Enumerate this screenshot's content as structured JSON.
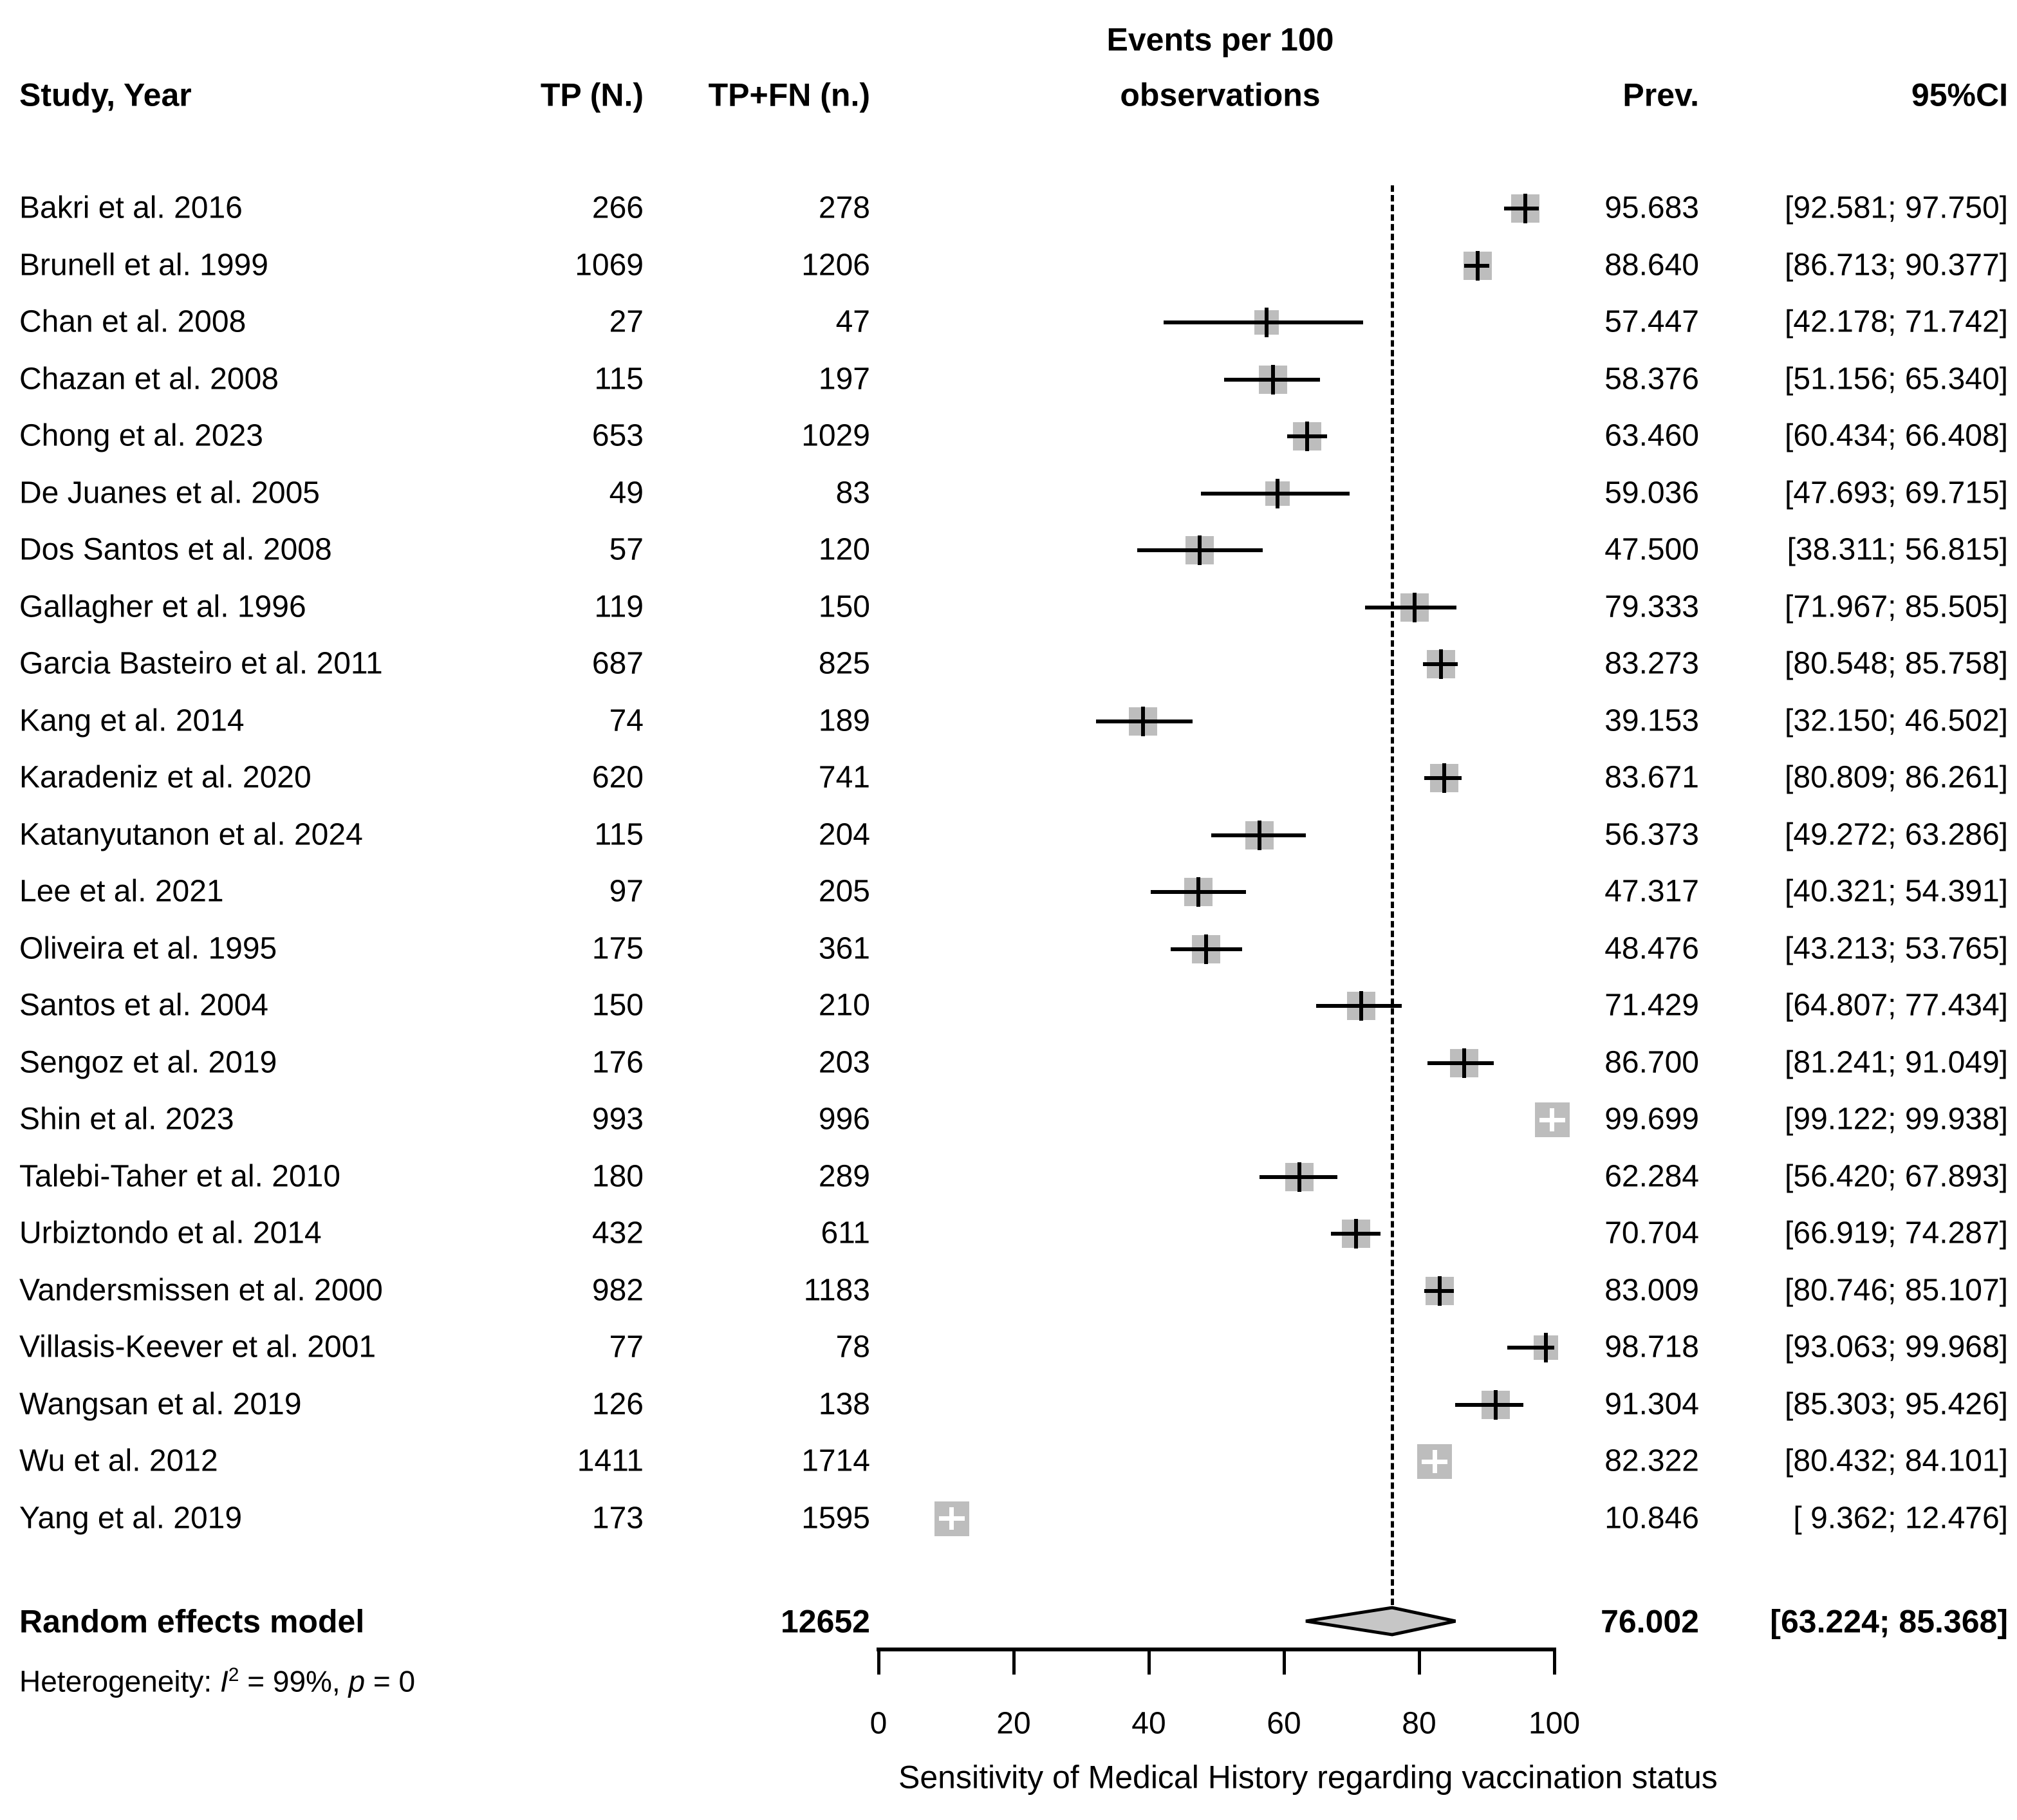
{
  "chart_data": {
    "type": "scatter",
    "subtype": "forest-plot-meta-analysis",
    "title": "Events per 100 observations",
    "title_line1": "Events per 100",
    "title_line2": "observations",
    "columns": {
      "study": "Study, Year",
      "tp": "TP (N.)",
      "tp_fn": "TP+FN (n.)",
      "prev": "Prev.",
      "ci": "95%CI"
    },
    "xlim": [
      0,
      100
    ],
    "xticks": [
      0,
      20,
      40,
      60,
      80,
      100
    ],
    "xlabel": "Sensitivity of Medical History regarding vaccination status",
    "reference_line_x": 76.002,
    "legend": "none",
    "grid": "off",
    "marker_color": "#bdbdbd",
    "diamond_color": "#c6c6c6",
    "line_color": "#000000",
    "studies": [
      {
        "name": "Bakri et al. 2016",
        "tp": "266",
        "tp_fn": "278",
        "n": 278,
        "prev": 95.683,
        "prev_text": "95.683",
        "lo": 92.581,
        "hi": 97.75,
        "ci_text": "[92.581; 97.750]",
        "white": false
      },
      {
        "name": "Brunell et al. 1999",
        "tp": "1069",
        "tp_fn": "1206",
        "n": 1206,
        "prev": 88.64,
        "prev_text": "88.640",
        "lo": 86.713,
        "hi": 90.377,
        "ci_text": "[86.713; 90.377]",
        "white": false
      },
      {
        "name": "Chan et al. 2008",
        "tp": "27",
        "tp_fn": "47",
        "n": 47,
        "prev": 57.447,
        "prev_text": "57.447",
        "lo": 42.178,
        "hi": 71.742,
        "ci_text": "[42.178; 71.742]",
        "white": false
      },
      {
        "name": "Chazan et al. 2008",
        "tp": "115",
        "tp_fn": "197",
        "n": 197,
        "prev": 58.376,
        "prev_text": "58.376",
        "lo": 51.156,
        "hi": 65.34,
        "ci_text": "[51.156; 65.340]",
        "white": false
      },
      {
        "name": "Chong et al. 2023",
        "tp": "653",
        "tp_fn": "1029",
        "n": 1029,
        "prev": 63.46,
        "prev_text": "63.460",
        "lo": 60.434,
        "hi": 66.408,
        "ci_text": "[60.434; 66.408]",
        "white": false
      },
      {
        "name": "De Juanes et al. 2005",
        "tp": "49",
        "tp_fn": "83",
        "n": 83,
        "prev": 59.036,
        "prev_text": "59.036",
        "lo": 47.693,
        "hi": 69.715,
        "ci_text": "[47.693; 69.715]",
        "white": false
      },
      {
        "name": "Dos Santos et al. 2008",
        "tp": "57",
        "tp_fn": "120",
        "n": 120,
        "prev": 47.5,
        "prev_text": "47.500",
        "lo": 38.311,
        "hi": 56.815,
        "ci_text": "[38.311; 56.815]",
        "white": false
      },
      {
        "name": "Gallagher et al. 1996",
        "tp": "119",
        "tp_fn": "150",
        "n": 150,
        "prev": 79.333,
        "prev_text": "79.333",
        "lo": 71.967,
        "hi": 85.505,
        "ci_text": "[71.967; 85.505]",
        "white": false
      },
      {
        "name": "Garcia Basteiro et al. 2011",
        "tp": "687",
        "tp_fn": "825",
        "n": 825,
        "prev": 83.273,
        "prev_text": "83.273",
        "lo": 80.548,
        "hi": 85.758,
        "ci_text": "[80.548; 85.758]",
        "white": false
      },
      {
        "name": "Kang et al. 2014",
        "tp": "74",
        "tp_fn": "189",
        "n": 189,
        "prev": 39.153,
        "prev_text": "39.153",
        "lo": 32.15,
        "hi": 46.502,
        "ci_text": "[32.150; 46.502]",
        "white": false
      },
      {
        "name": "Karadeniz et al. 2020",
        "tp": "620",
        "tp_fn": "741",
        "n": 741,
        "prev": 83.671,
        "prev_text": "83.671",
        "lo": 80.809,
        "hi": 86.261,
        "ci_text": "[80.809; 86.261]",
        "white": false
      },
      {
        "name": "Katanyutanon et al. 2024",
        "tp": "115",
        "tp_fn": "204",
        "n": 204,
        "prev": 56.373,
        "prev_text": "56.373",
        "lo": 49.272,
        "hi": 63.286,
        "ci_text": "[49.272; 63.286]",
        "white": false
      },
      {
        "name": "Lee et al. 2021",
        "tp": "97",
        "tp_fn": "205",
        "n": 205,
        "prev": 47.317,
        "prev_text": "47.317",
        "lo": 40.321,
        "hi": 54.391,
        "ci_text": "[40.321; 54.391]",
        "white": false
      },
      {
        "name": "Oliveira et al. 1995",
        "tp": "175",
        "tp_fn": "361",
        "n": 361,
        "prev": 48.476,
        "prev_text": "48.476",
        "lo": 43.213,
        "hi": 53.765,
        "ci_text": "[43.213; 53.765]",
        "white": false
      },
      {
        "name": "Santos et al. 2004",
        "tp": "150",
        "tp_fn": "210",
        "n": 210,
        "prev": 71.429,
        "prev_text": "71.429",
        "lo": 64.807,
        "hi": 77.434,
        "ci_text": "[64.807; 77.434]",
        "white": false
      },
      {
        "name": "Sengoz et al. 2019",
        "tp": "176",
        "tp_fn": "203",
        "n": 203,
        "prev": 86.7,
        "prev_text": "86.700",
        "lo": 81.241,
        "hi": 91.049,
        "ci_text": "[81.241; 91.049]",
        "white": false
      },
      {
        "name": "Shin et al. 2023",
        "tp": "993",
        "tp_fn": "996",
        "n": 996,
        "prev": 99.699,
        "prev_text": "99.699",
        "lo": 99.122,
        "hi": 99.938,
        "ci_text": "[99.122; 99.938]",
        "white": true
      },
      {
        "name": "Talebi-Taher et al. 2010",
        "tp": "180",
        "tp_fn": "289",
        "n": 289,
        "prev": 62.284,
        "prev_text": "62.284",
        "lo": 56.42,
        "hi": 67.893,
        "ci_text": "[56.420; 67.893]",
        "white": false
      },
      {
        "name": "Urbiztondo et al. 2014",
        "tp": "432",
        "tp_fn": "611",
        "n": 611,
        "prev": 70.704,
        "prev_text": "70.704",
        "lo": 66.919,
        "hi": 74.287,
        "ci_text": "[66.919; 74.287]",
        "white": false
      },
      {
        "name": "Vandersmissen et al. 2000",
        "tp": "982",
        "tp_fn": "1183",
        "n": 1183,
        "prev": 83.009,
        "prev_text": "83.009",
        "lo": 80.746,
        "hi": 85.107,
        "ci_text": "[80.746; 85.107]",
        "white": false
      },
      {
        "name": "Villasis-Keever et al. 2001",
        "tp": "77",
        "tp_fn": "78",
        "n": 78,
        "prev": 98.718,
        "prev_text": "98.718",
        "lo": 93.063,
        "hi": 99.968,
        "ci_text": "[93.063; 99.968]",
        "white": false
      },
      {
        "name": "Wangsan et al. 2019",
        "tp": "126",
        "tp_fn": "138",
        "n": 138,
        "prev": 91.304,
        "prev_text": "91.304",
        "lo": 85.303,
        "hi": 95.426,
        "ci_text": "[85.303; 95.426]",
        "white": false
      },
      {
        "name": "Wu et al. 2012",
        "tp": "1411",
        "tp_fn": "1714",
        "n": 1714,
        "prev": 82.322,
        "prev_text": "82.322",
        "lo": 80.432,
        "hi": 84.101,
        "ci_text": "[80.432; 84.101]",
        "white": true
      },
      {
        "name": "Yang et al. 2019",
        "tp": "173",
        "tp_fn": "1595",
        "n": 1595,
        "prev": 10.846,
        "prev_text": "10.846",
        "lo": 9.362,
        "hi": 12.476,
        "ci_text": "[ 9.362; 12.476]",
        "white": true
      }
    ],
    "summary": {
      "label": "Random effects model",
      "tp_fn": "12652",
      "prev": 76.002,
      "prev_text": "76.002",
      "lo": 63.224,
      "hi": 85.368,
      "ci_text": "[63.224; 85.368]"
    },
    "heterogeneity": {
      "prefix": "Heterogeneity: ",
      "i": "I",
      "i_sup": "2",
      "mid": " = 99%, ",
      "p": "p",
      "suffix": " = 0"
    }
  }
}
